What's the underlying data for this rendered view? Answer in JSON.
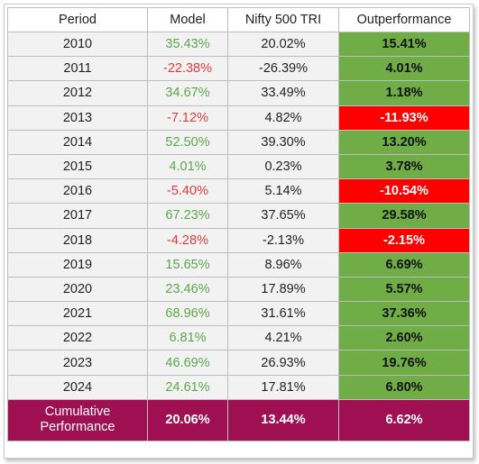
{
  "headers": {
    "period": "Period",
    "model": "Model",
    "nifty": "Nifty 500 TRI",
    "outperformance": "Outperformance"
  },
  "rows": [
    {
      "period": "2010",
      "model": "35.43%",
      "nifty": "20.02%",
      "out": "15.41%",
      "model_sign": "pos",
      "out_sign": "pos"
    },
    {
      "period": "2011",
      "model": "-22.38%",
      "nifty": "-26.39%",
      "out": "4.01%",
      "model_sign": "neg",
      "out_sign": "pos"
    },
    {
      "period": "2012",
      "model": "34.67%",
      "nifty": "33.49%",
      "out": "1.18%",
      "model_sign": "pos",
      "out_sign": "pos"
    },
    {
      "period": "2013",
      "model": "-7.12%",
      "nifty": "4.82%",
      "out": "-11.93%",
      "model_sign": "neg",
      "out_sign": "neg"
    },
    {
      "period": "2014",
      "model": "52.50%",
      "nifty": "39.30%",
      "out": "13.20%",
      "model_sign": "pos",
      "out_sign": "pos"
    },
    {
      "period": "2015",
      "model": "4.01%",
      "nifty": "0.23%",
      "out": "3.78%",
      "model_sign": "pos",
      "out_sign": "pos"
    },
    {
      "period": "2016",
      "model": "-5.40%",
      "nifty": "5.14%",
      "out": "-10.54%",
      "model_sign": "neg",
      "out_sign": "neg"
    },
    {
      "period": "2017",
      "model": "67.23%",
      "nifty": "37.65%",
      "out": "29.58%",
      "model_sign": "pos",
      "out_sign": "pos"
    },
    {
      "period": "2018",
      "model": "-4.28%",
      "nifty": "-2.13%",
      "out": "-2.15%",
      "model_sign": "neg",
      "out_sign": "neg"
    },
    {
      "period": "2019",
      "model": "15.65%",
      "nifty": "8.96%",
      "out": "6.69%",
      "model_sign": "pos",
      "out_sign": "pos"
    },
    {
      "period": "2020",
      "model": "23.46%",
      "nifty": "17.89%",
      "out": "5.57%",
      "model_sign": "pos",
      "out_sign": "pos"
    },
    {
      "period": "2021",
      "model": "68.96%",
      "nifty": "31.61%",
      "out": "37.36%",
      "model_sign": "pos",
      "out_sign": "pos"
    },
    {
      "period": "2022",
      "model": "6.81%",
      "nifty": "4.21%",
      "out": "2.60%",
      "model_sign": "pos",
      "out_sign": "pos"
    },
    {
      "period": "2023",
      "model": "46.69%",
      "nifty": "26.93%",
      "out": "19.76%",
      "model_sign": "pos",
      "out_sign": "pos"
    },
    {
      "period": "2024",
      "model": "24.61%",
      "nifty": "17.81%",
      "out": "6.80%",
      "model_sign": "pos",
      "out_sign": "pos"
    }
  ],
  "total": {
    "label_line1": "Cumulative",
    "label_line2": "Performance",
    "model": "20.06%",
    "nifty": "13.44%",
    "out": "6.62%"
  },
  "colors": {
    "positive_text": "#5aa84a",
    "negative_text": "#e23b3b",
    "outperform_fill": "#70ad47",
    "underperform_fill": "#ff0000",
    "total_fill": "#9e1052"
  }
}
